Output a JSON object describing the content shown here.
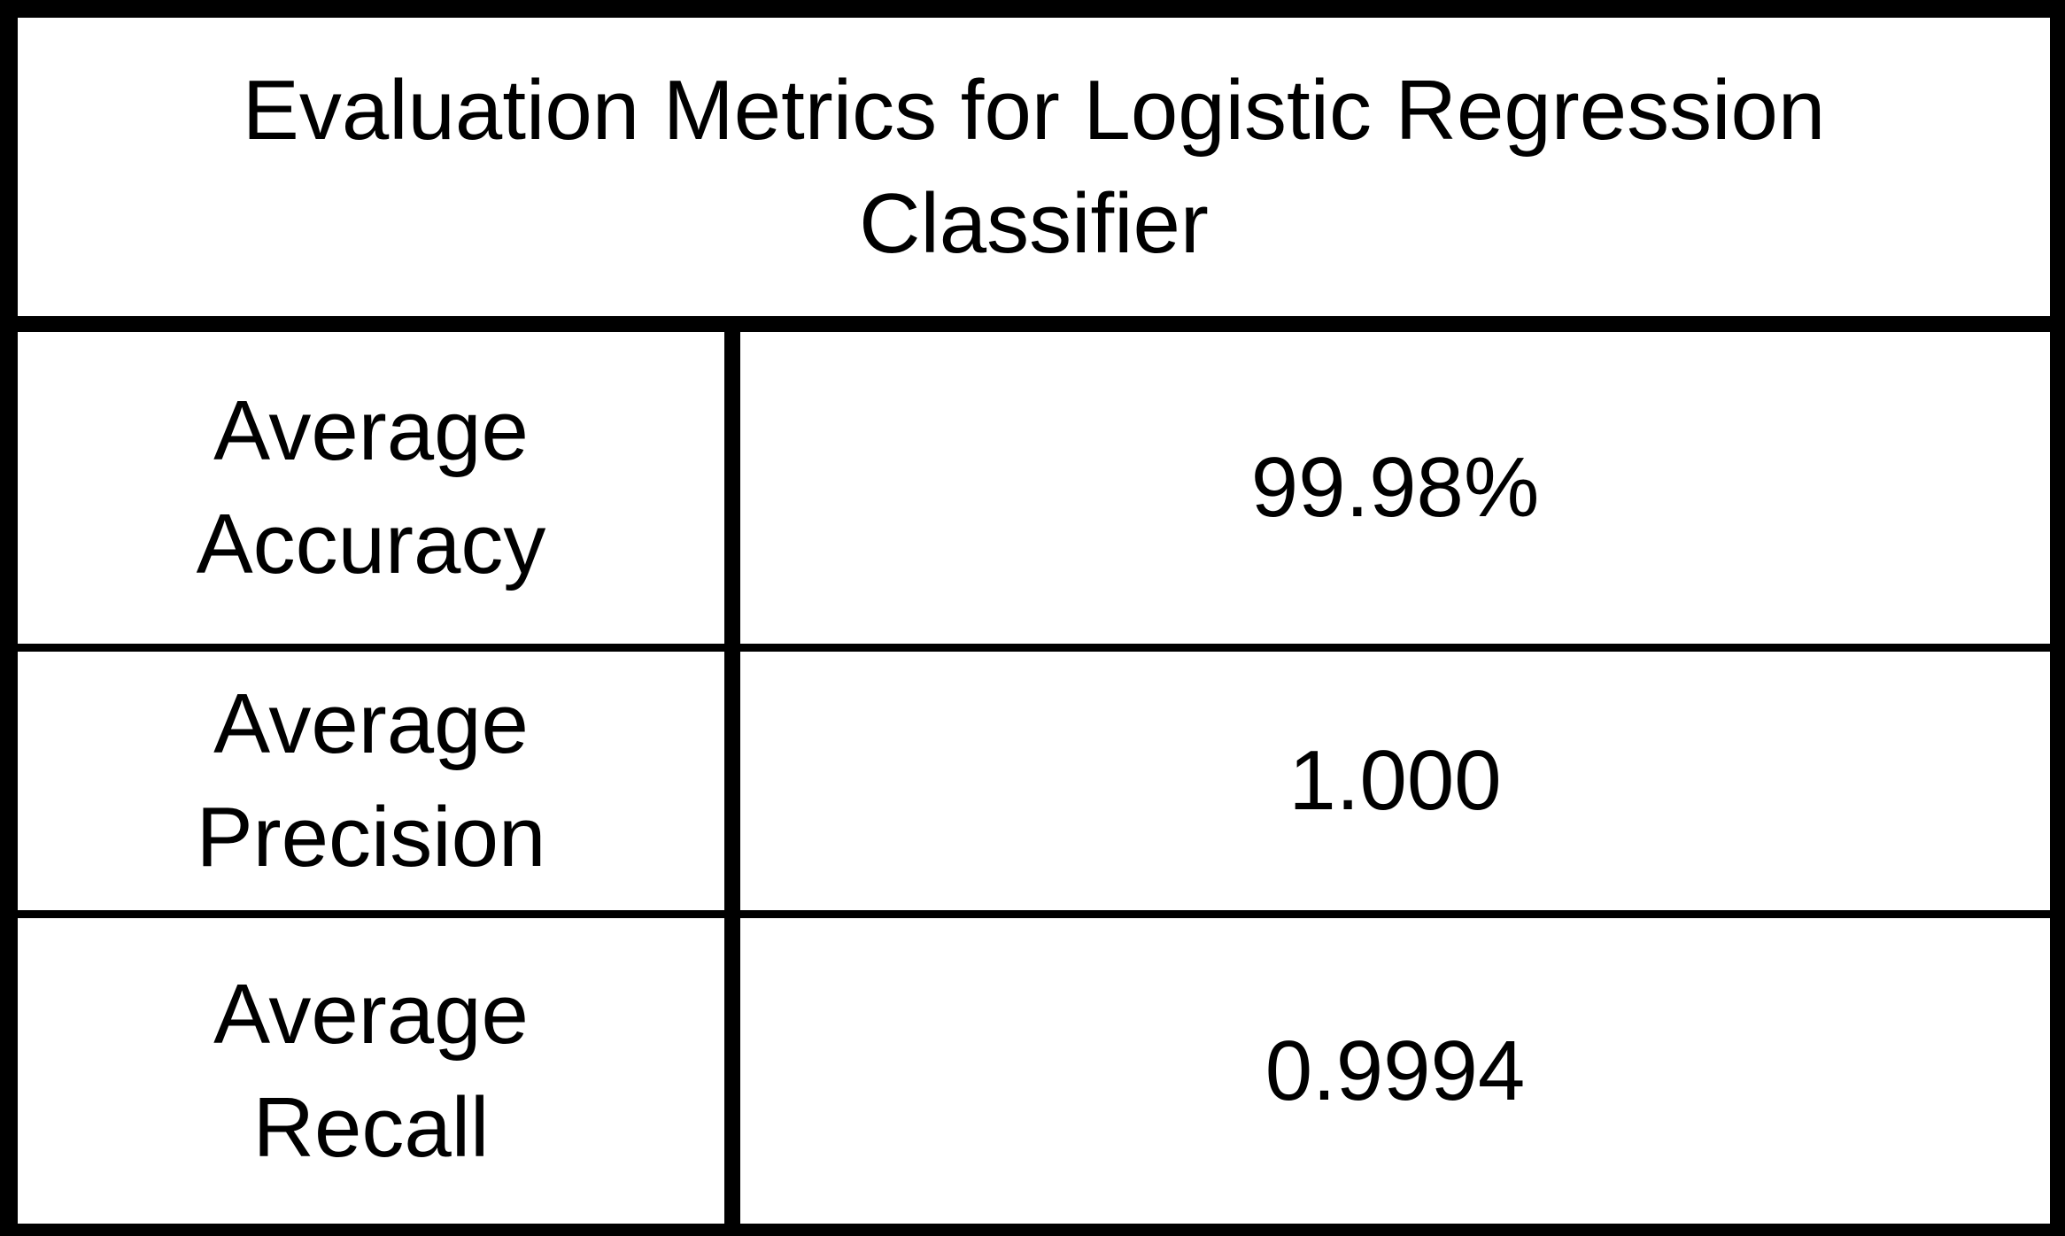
{
  "table": {
    "title": "Evaluation Metrics for Logistic Regression Classifier",
    "rows": [
      {
        "label": "Average Accuracy",
        "value": "99.98%"
      },
      {
        "label": "Average Precision",
        "value": "1.000"
      },
      {
        "label": "Average Recall",
        "value": "0.9994"
      }
    ]
  }
}
